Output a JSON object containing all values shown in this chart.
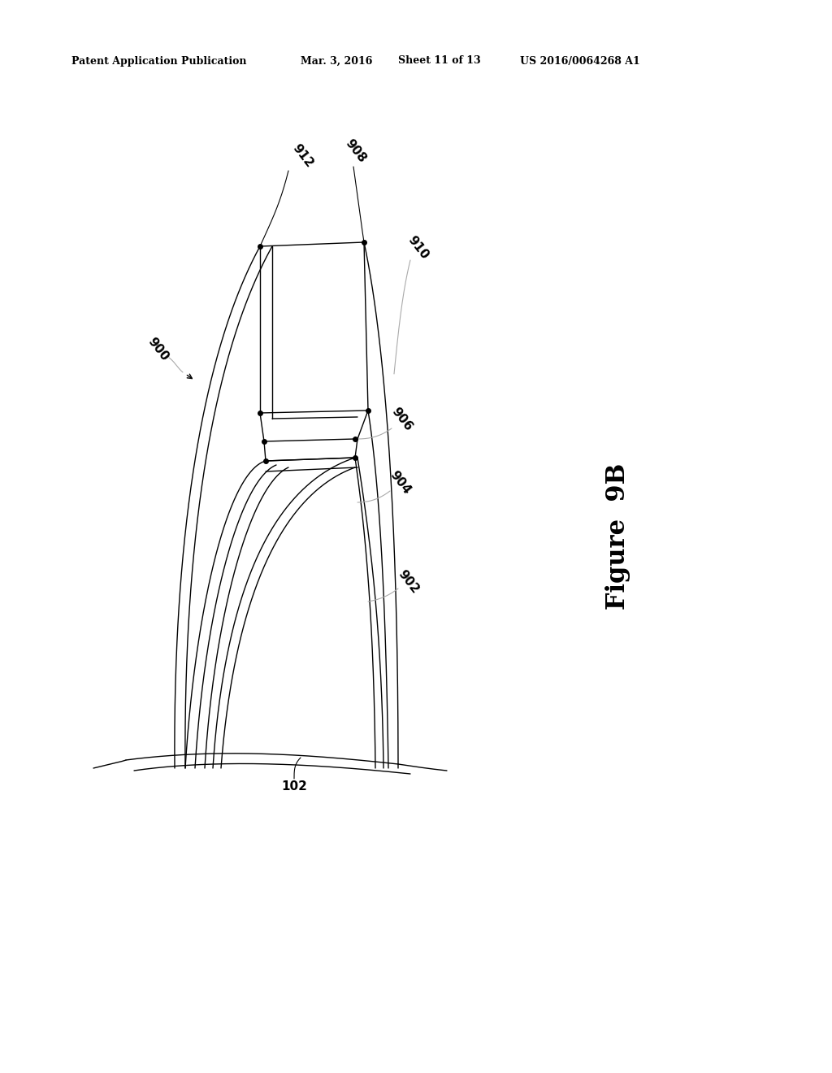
{
  "bg_color": "#ffffff",
  "line_color": "#000000",
  "gray_color": "#aaaaaa",
  "header_left": "Patent Application Publication",
  "header_mid": "Mar. 3, 2016",
  "header_sheet": "Sheet 11 of 13",
  "header_patent": "US 2016/0064268 A1",
  "figure_label": "Figure  9B",
  "label_fontsize": 11,
  "header_fontsize": 9,
  "figure_fontsize": 22
}
